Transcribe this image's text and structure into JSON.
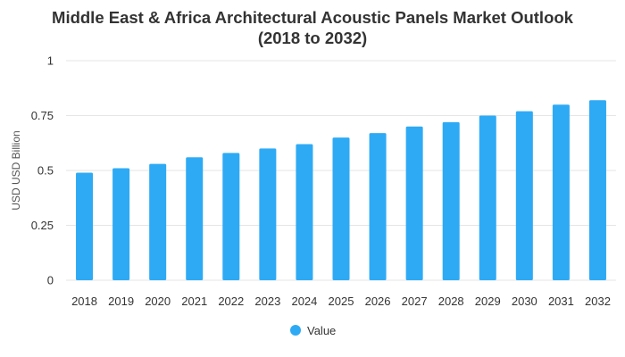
{
  "chart_data": {
    "type": "bar",
    "title_line1": "Middle East & Africa Architectural Acoustic Panels Market Outlook",
    "title_line2": "(2018 to 2032)",
    "ylabel": "USD USD Billion",
    "xlabel": "",
    "categories": [
      "2018",
      "2019",
      "2020",
      "2021",
      "2022",
      "2023",
      "2024",
      "2025",
      "2026",
      "2027",
      "2028",
      "2029",
      "2030",
      "2031",
      "2032"
    ],
    "series": [
      {
        "name": "Value",
        "color": "#2eaaf5",
        "values": [
          0.49,
          0.51,
          0.53,
          0.56,
          0.58,
          0.6,
          0.62,
          0.65,
          0.67,
          0.7,
          0.72,
          0.75,
          0.77,
          0.8,
          0.82
        ]
      }
    ],
    "ylim": [
      0,
      1
    ],
    "yticks": [
      0,
      0.25,
      0.5,
      0.75,
      1
    ],
    "ytick_labels": [
      "0",
      "0.25",
      "0.5",
      "0.75",
      "1"
    ],
    "grid": true,
    "legend_position": "bottom-center"
  }
}
